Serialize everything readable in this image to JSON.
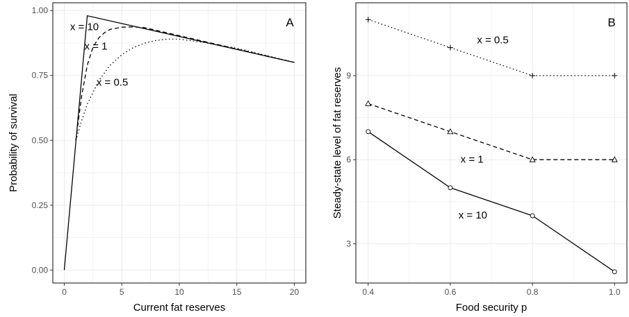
{
  "chart_data": [
    {
      "type": "line",
      "panel_label": "A",
      "xlabel": "Current fat reserves",
      "ylabel": "Probability of survival",
      "xlim": [
        -1,
        21
      ],
      "ylim": [
        -0.05,
        1.03
      ],
      "x_ticks": [
        0,
        5,
        10,
        15,
        20
      ],
      "y_ticks": [
        0,
        0.25,
        0.5,
        0.75,
        1.0
      ],
      "x_tick_labels": [
        "0",
        "5",
        "10",
        "15",
        "20"
      ],
      "y_tick_labels": [
        "0.00",
        "0.25",
        "0.50",
        "0.75",
        "1.00"
      ],
      "grid": true,
      "colors": {
        "panel_bg": "#ffffff",
        "grid": "#ebebeb",
        "border": "#333333",
        "line": "#000000"
      },
      "series": [
        {
          "name": "x = 10",
          "dash": "solid",
          "label_at": [
            0.5,
            0.925
          ],
          "x": [
            0,
            2,
            20
          ],
          "y": [
            0,
            0.98,
            0.8
          ]
        },
        {
          "name": "x = 1",
          "dash": "dashed",
          "label_at": [
            1.75,
            0.85
          ],
          "x": [
            1,
            1.5,
            2,
            2.5,
            3,
            3.5,
            4,
            5,
            6,
            7,
            20
          ],
          "y": [
            0.5,
            0.67,
            0.79,
            0.86,
            0.895,
            0.915,
            0.928,
            0.936,
            0.937,
            0.934,
            0.8
          ]
        },
        {
          "name": "x = 0.5",
          "dash": "dotted",
          "label_at": [
            2.8,
            0.71
          ],
          "x": [
            1,
            1.5,
            2,
            3,
            4,
            5,
            6,
            7,
            8,
            9,
            10,
            12,
            15,
            20
          ],
          "y": [
            0.5,
            0.575,
            0.64,
            0.73,
            0.79,
            0.83,
            0.857,
            0.875,
            0.885,
            0.89,
            0.89,
            0.878,
            0.855,
            0.8
          ]
        }
      ]
    },
    {
      "type": "line",
      "panel_label": "B",
      "xlabel": "Food security p",
      "ylabel": "Steady-state level of fat reserves",
      "xlim": [
        0.37,
        1.03
      ],
      "ylim": [
        1.6,
        11.6
      ],
      "x_ticks": [
        0.4,
        0.6,
        0.8,
        1.0
      ],
      "y_ticks": [
        3,
        6,
        9
      ],
      "x_tick_labels": [
        "0.4",
        "0.6",
        "0.8",
        "1.0"
      ],
      "y_tick_labels": [
        "3",
        "6",
        "9"
      ],
      "grid": true,
      "colors": {
        "panel_bg": "#ffffff",
        "grid": "#ebebeb",
        "border": "#333333",
        "line": "#000000"
      },
      "series": [
        {
          "name": "x = 0.5",
          "dash": "dotted",
          "marker": "plus",
          "label_at": [
            0.665,
            10.15
          ],
          "x": [
            0.4,
            0.6,
            0.8,
            1.0
          ],
          "y": [
            11,
            10,
            9,
            9
          ]
        },
        {
          "name": "x = 1",
          "dash": "dashed",
          "marker": "triangle",
          "label_at": [
            0.625,
            5.9
          ],
          "x": [
            0.4,
            0.6,
            0.8,
            1.0
          ],
          "y": [
            8,
            7,
            6,
            6
          ]
        },
        {
          "name": "x = 10",
          "dash": "solid",
          "marker": "circle",
          "label_at": [
            0.62,
            3.9
          ],
          "x": [
            0.4,
            0.6,
            0.8,
            1.0
          ],
          "y": [
            7,
            5,
            4,
            2
          ]
        }
      ]
    }
  ]
}
